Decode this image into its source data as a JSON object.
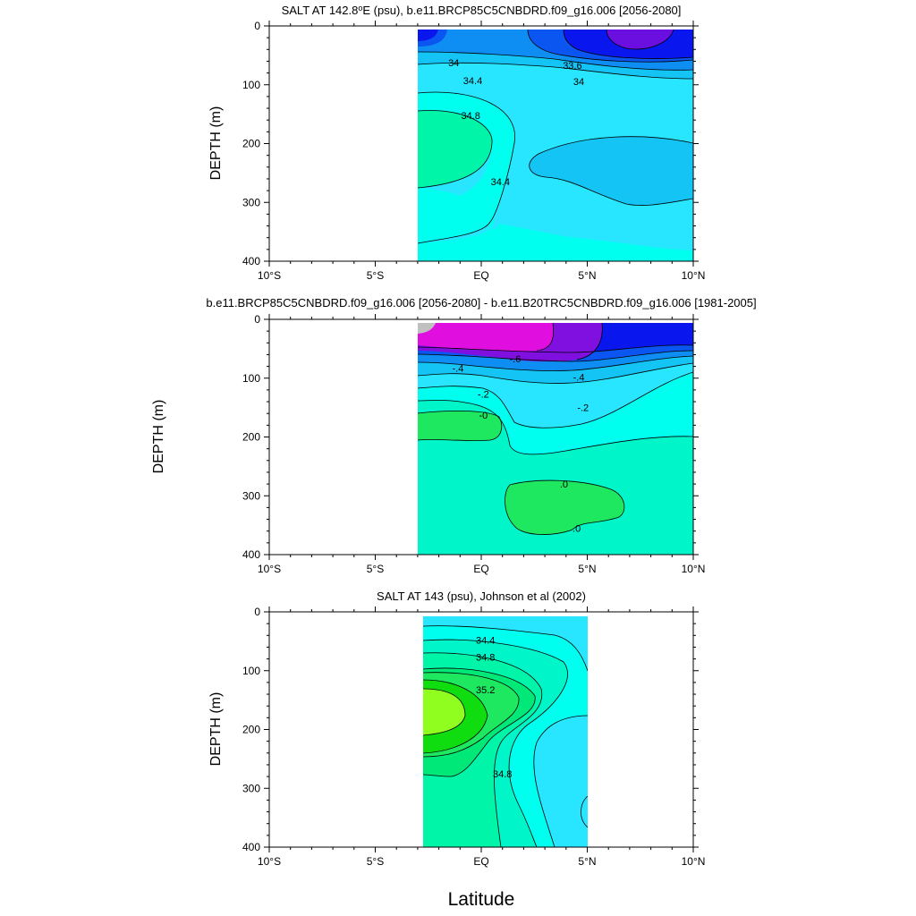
{
  "figure": {
    "xlabel": "Latitude"
  },
  "chart_data": [
    {
      "type": "contour",
      "title": "SALT AT 142.8°E (psu), b.e11.BRCP85C5CNBDRD.f09_g16.006 [2056-2080]",
      "title_parts": [
        "SALT AT 142.8",
        "E (psu), b.e11.BRCP85C5CNBDRD.f09_g16.006 [2056-2080]"
      ],
      "variable": "salinity",
      "units": "psu",
      "xlabel": "",
      "ylabel": "DEPTH (m)",
      "xlim": [
        -10,
        10
      ],
      "ylim": [
        0,
        400
      ],
      "y_inverted": true,
      "xticks": [
        -10,
        -5,
        0,
        5,
        10
      ],
      "xtick_labels": [
        "10°S",
        "5°S",
        "EQ",
        "5°N",
        "10°N"
      ],
      "yticks": [
        0,
        100,
        200,
        300,
        400
      ],
      "ytick_labels": [
        "0",
        "100",
        "200",
        "300",
        "400"
      ],
      "data_extent_lat": [
        -3.1,
        10
      ],
      "data_extent_depth": [
        5,
        400
      ],
      "contour_labels": [
        {
          "text": "34",
          "lat": -1.3,
          "depth": 62
        },
        {
          "text": "33.6",
          "lat": 4.3,
          "depth": 67
        },
        {
          "text": "34",
          "lat": 4.6,
          "depth": 94
        },
        {
          "text": "34.4",
          "lat": -0.4,
          "depth": 93
        },
        {
          "text": "34.8",
          "lat": -0.5,
          "depth": 152
        },
        {
          "text": "34.4",
          "lat": 0.9,
          "depth": 265
        }
      ],
      "colors": {
        "s33_4": "#6b0fe0",
        "s33_6": "#0a16ee",
        "s33_8": "#0b55f0",
        "s34_0": "#0e8ef2",
        "s34_2": "#14c4f5",
        "s34_4": "#28e6ff",
        "s34_6": "#00ffee",
        "s34_8": "#00f5a9"
      }
    },
    {
      "type": "contour",
      "title": "b.e11.BRCP85C5CNBDRD.f09_g16.006 [2056-2080] - b.e11.B20TRC5CNBDRD.f09_g16.006 [1981-2005]",
      "variable": "salinity difference",
      "xlabel": "",
      "ylabel": "DEPTH (m)",
      "xlim": [
        -10,
        10
      ],
      "ylim": [
        0,
        400
      ],
      "y_inverted": true,
      "xticks": [
        -10,
        -5,
        0,
        5,
        10
      ],
      "xtick_labels": [
        "10°S",
        "5°S",
        "EQ",
        "5°N",
        "10°N"
      ],
      "yticks": [
        0,
        100,
        200,
        300,
        400
      ],
      "ytick_labels": [
        "0",
        "100",
        "200",
        "300",
        "400"
      ],
      "data_extent_lat": [
        -3.1,
        10
      ],
      "data_extent_depth": [
        5,
        400
      ],
      "contour_labels": [
        {
          "text": "-.6",
          "lat": 1.6,
          "depth": 67
        },
        {
          "text": "-.4",
          "lat": -1.1,
          "depth": 83
        },
        {
          "text": "-.4",
          "lat": 4.6,
          "depth": 98
        },
        {
          "text": "-.2",
          "lat": 0.1,
          "depth": 127
        },
        {
          "text": "-.2",
          "lat": 4.8,
          "depth": 150
        },
        {
          "text": "-0",
          "lat": 0.1,
          "depth": 163
        },
        {
          "text": ".0",
          "lat": 3.9,
          "depth": 280
        },
        {
          "text": ".0",
          "lat": 4.5,
          "depth": 355
        }
      ],
      "colors": {
        "d_m10": "#c0c0c0",
        "d_m08": "#e00fe0",
        "d_m07": "#8010e0",
        "d_m06": "#0a16ee",
        "d_m05": "#0b55f0",
        "d_m04": "#0e8ef2",
        "d_m03": "#14c4f5",
        "d_m02": "#28e6ff",
        "d_m01": "#00ffee",
        "d_00": "#00f5c8",
        "d_p01": "#1ee860"
      }
    },
    {
      "type": "contour",
      "title": "SALT AT 143 (psu), Johnson et al (2002)",
      "variable": "salinity",
      "units": "psu",
      "xlabel": "",
      "ylabel": "DEPTH (m)",
      "xlim": [
        -10,
        10
      ],
      "ylim": [
        0,
        400
      ],
      "y_inverted": true,
      "xticks": [
        -10,
        -5,
        0,
        5,
        10
      ],
      "xtick_labels": [
        "10°S",
        "5°S",
        "EQ",
        "5°N",
        "10°N"
      ],
      "yticks": [
        0,
        100,
        200,
        300,
        400
      ],
      "ytick_labels": [
        "0",
        "100",
        "200",
        "300",
        "400"
      ],
      "data_extent_lat": [
        -2.8,
        5
      ],
      "data_extent_depth": [
        5,
        400
      ],
      "contour_labels": [
        {
          "text": "34.4",
          "lat": 0.2,
          "depth": 48
        },
        {
          "text": "34.8",
          "lat": 0.2,
          "depth": 77
        },
        {
          "text": "35.2",
          "lat": 0.2,
          "depth": 132
        },
        {
          "text": "34.8",
          "lat": 1.0,
          "depth": 275
        }
      ],
      "colors": {
        "s34_2": "#28e6ff",
        "s34_4": "#00ffee",
        "s34_6": "#00f5c8",
        "s34_8": "#00f5a9",
        "s35_0": "#00e878",
        "s35_2": "#1ee860",
        "s35_4": "#10dd10",
        "s35_6": "#90ff20"
      }
    }
  ]
}
